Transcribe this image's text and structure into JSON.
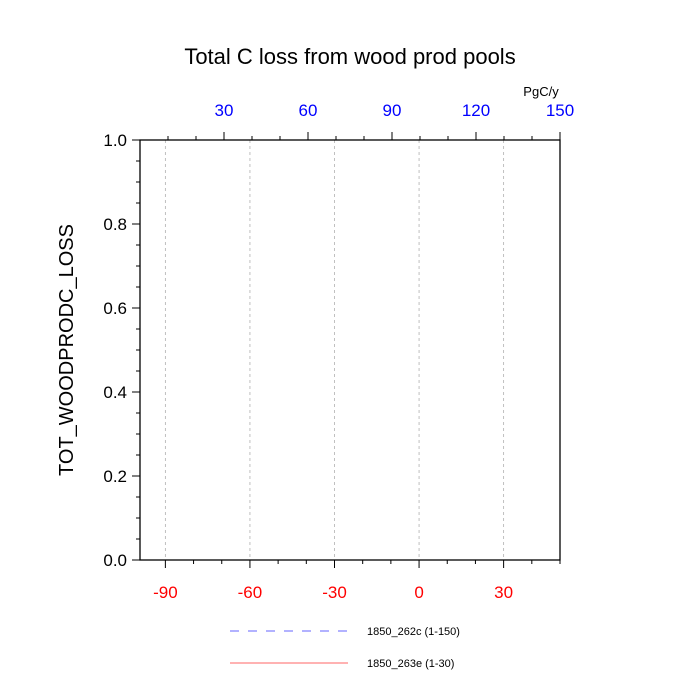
{
  "chart_data": {
    "type": "line",
    "title": "Total C loss from wood prod pools",
    "ylabel": "TOT_WOODPRODC_LOSS",
    "top_axis_unit": "PgC/y",
    "ylim": [
      0,
      1
    ],
    "yticks": [
      0,
      0.2,
      0.4,
      0.6,
      0.8,
      1
    ],
    "ytick_labels": [
      "0.0",
      "0.2",
      "0.4",
      "0.6",
      "0.8",
      "1.0"
    ],
    "bottom_xlim": [
      -99,
      50
    ],
    "bottom_xticks": [
      -90,
      -60,
      -30,
      0,
      30
    ],
    "bottom_tick_color": "#ff0000",
    "top_xlim": [
      0,
      150
    ],
    "top_xticks": [
      30,
      60,
      90,
      120,
      150
    ],
    "top_tick_color": "#0000ff",
    "grid": "vertical dashed at bottom-axis ticks",
    "series": [
      {
        "name": "1850_262c (1-150)",
        "axis": "top",
        "color": "#0000ff",
        "dash": "dashed",
        "x": [
          0,
          150
        ],
        "y": [
          0,
          0
        ]
      },
      {
        "name": "1850_263e (1-30)",
        "axis": "bottom",
        "color": "#ff0000",
        "dash": "solid",
        "x": [
          -99,
          50
        ],
        "y": [
          0,
          0
        ]
      }
    ],
    "legend_placement": "bottom-center"
  }
}
